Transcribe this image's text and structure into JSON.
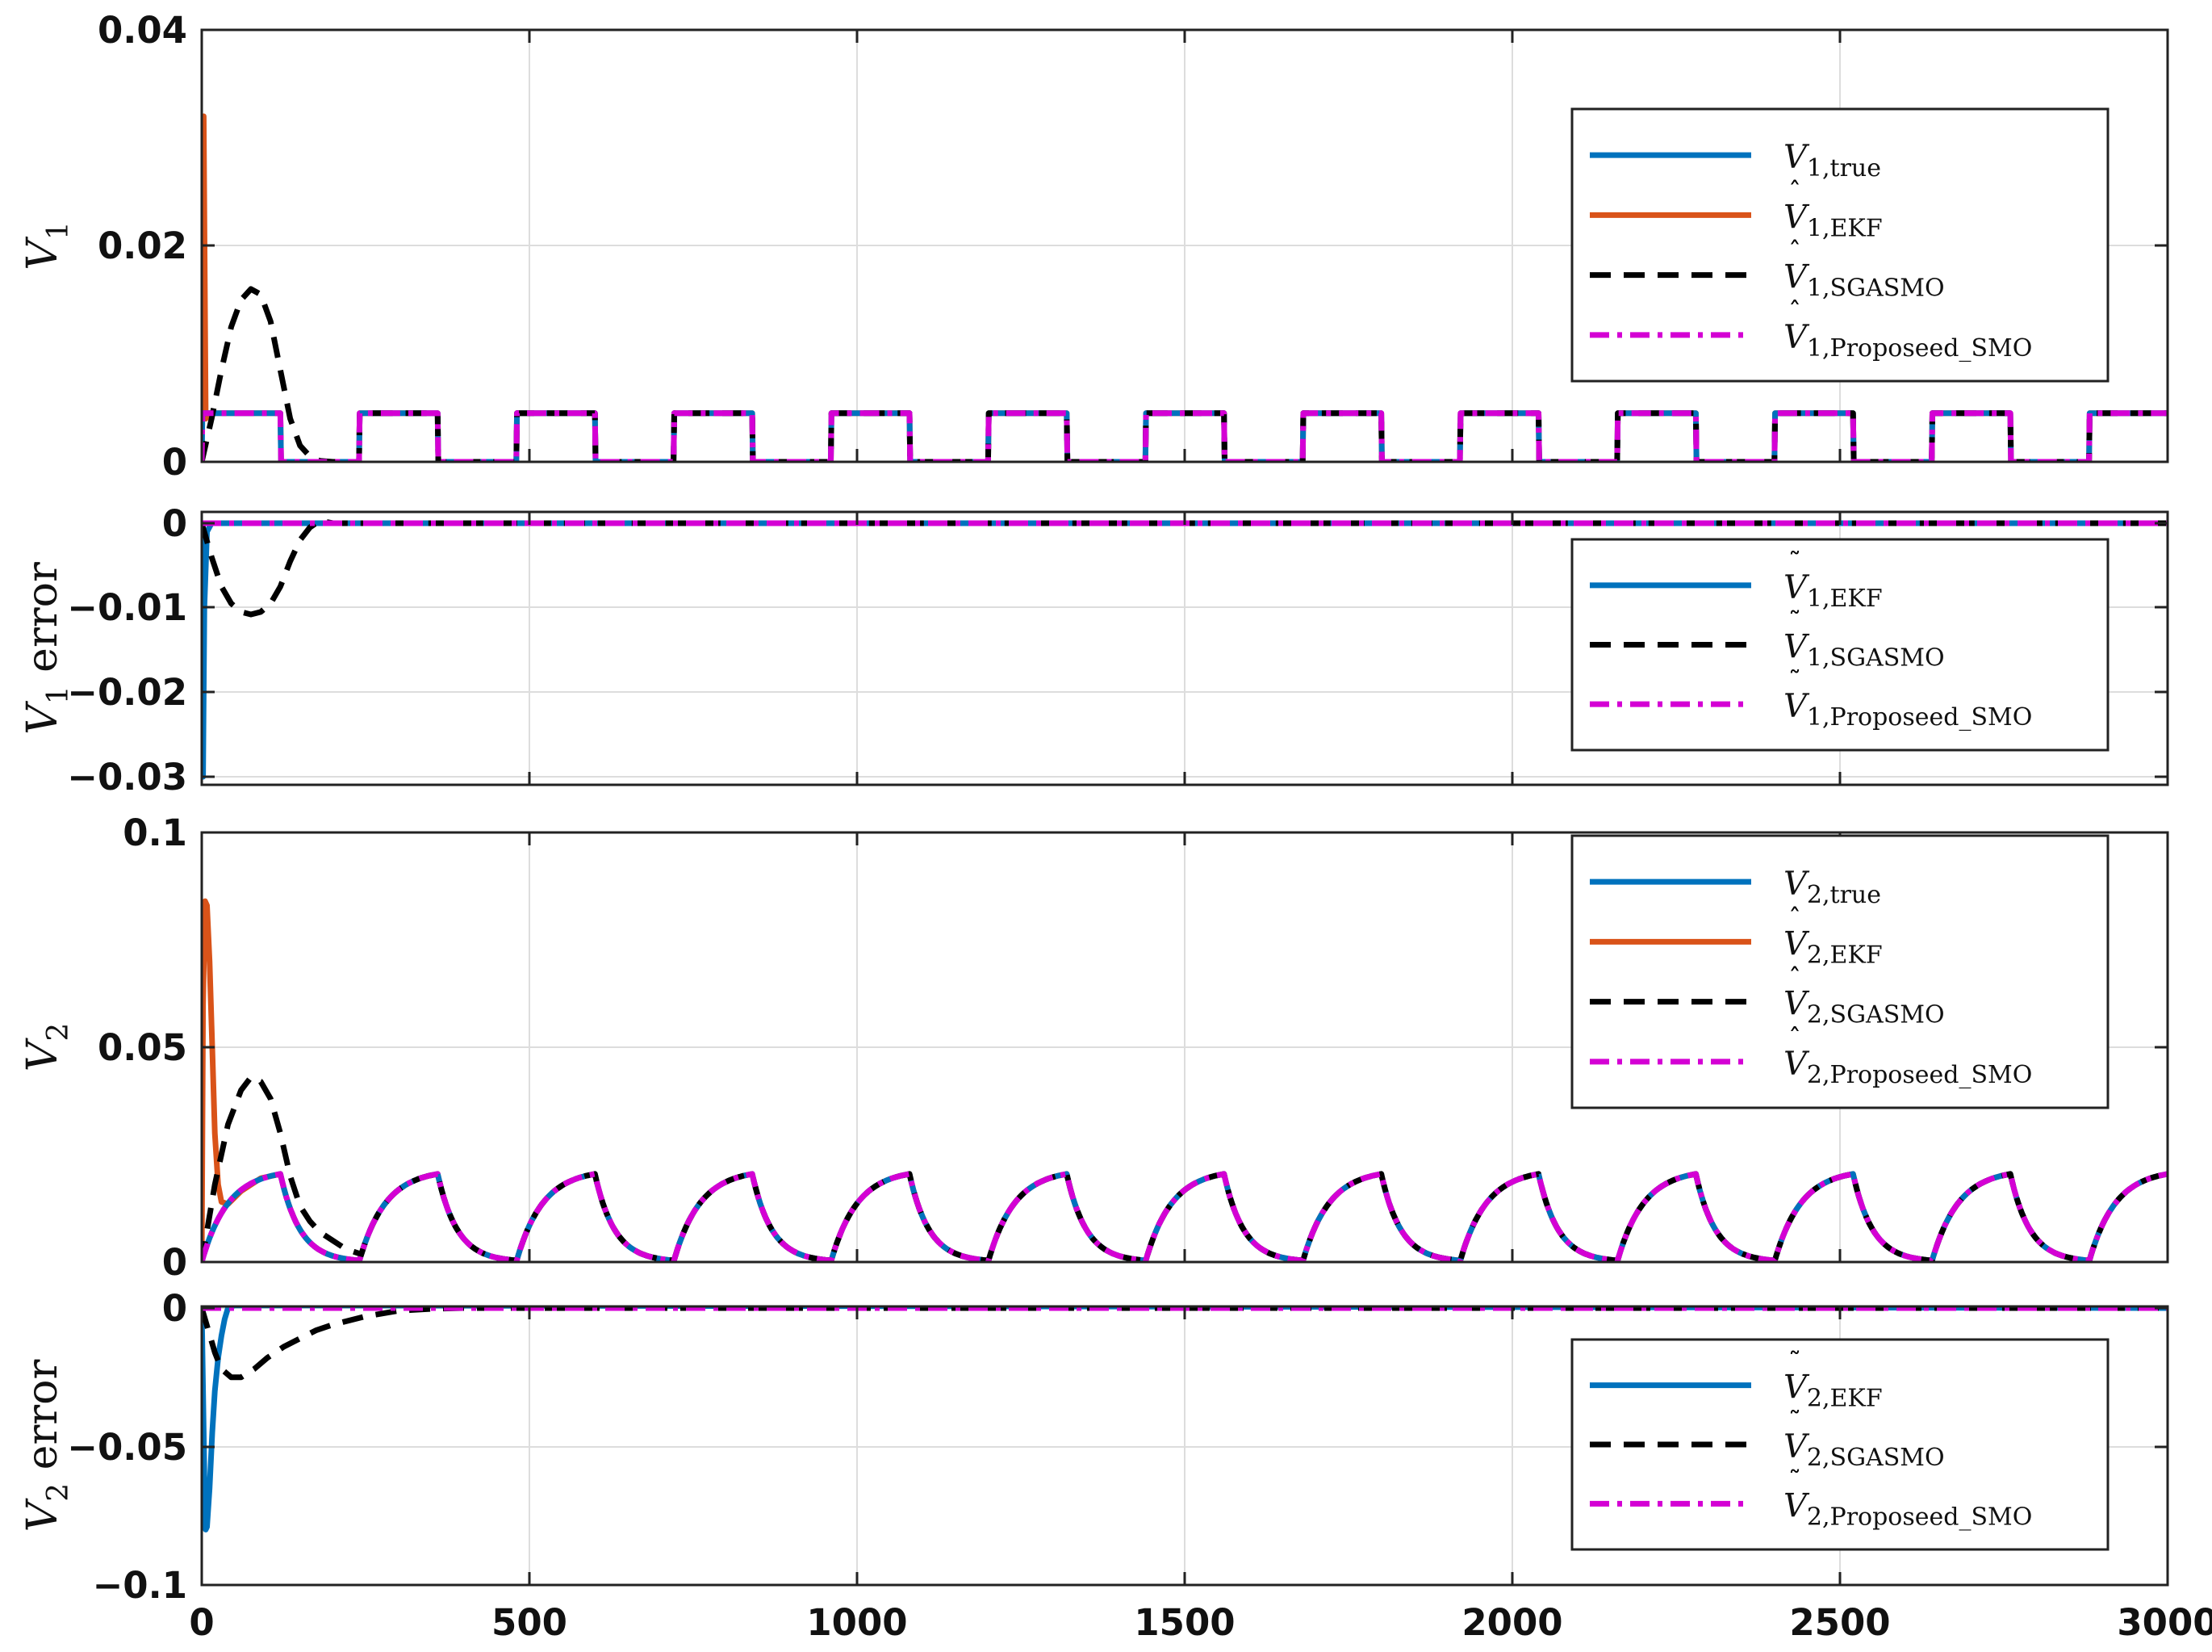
{
  "chart_data": [
    {
      "type": "line",
      "ylabel": "V1",
      "ylim": [
        0,
        0.04
      ],
      "yticks": [
        "0",
        "0.02",
        "0.04"
      ],
      "xlim": [
        0,
        3000
      ],
      "grid": true,
      "legend_position": "top-right",
      "square_wave": {
        "period": 240,
        "high": 0.0045,
        "low": 0.0,
        "first_high_end": 120
      },
      "series": [
        {
          "name": "V̂1,EKF",
          "color": "#D95319",
          "x": [
            0,
            3,
            6,
            10,
            120,
            121,
            240,
            241,
            360,
            361,
            480,
            481,
            600,
            601,
            720,
            721,
            840,
            841,
            960,
            961,
            1080,
            1081,
            1200,
            1201,
            1320,
            1321,
            1440,
            1441,
            1560,
            1561,
            1680,
            1681,
            1800,
            1801,
            1920,
            1921,
            2040,
            2041,
            2160,
            2161,
            2280,
            2281,
            2400,
            2401,
            2520,
            2521,
            2640,
            2641,
            2760,
            2761,
            2880,
            2881,
            3000
          ],
          "y": [
            0,
            0.032,
            0.004,
            0.0045,
            0.0045,
            0,
            0,
            0.0045,
            0.0045,
            0,
            0,
            0.0045,
            0.0045,
            0,
            0,
            0.0045,
            0.0045,
            0,
            0,
            0.0045,
            0.0045,
            0,
            0,
            0.0045,
            0.0045,
            0,
            0,
            0.0045,
            0.0045,
            0,
            0,
            0.0045,
            0.0045,
            0,
            0,
            0.0045,
            0.0045,
            0,
            0,
            0.0045,
            0.0045,
            0,
            0,
            0.0045,
            0.0045,
            0,
            0,
            0.0045,
            0.0045,
            0,
            0,
            0.0045,
            0.0045
          ]
        },
        {
          "name": "V1,true",
          "color": "#0072BD",
          "x": [
            0,
            1,
            120,
            121,
            240,
            241,
            360,
            361,
            480,
            481,
            600,
            601,
            720,
            721,
            840,
            841,
            960,
            961,
            1080,
            1081,
            1200,
            1201,
            1320,
            1321,
            1440,
            1441,
            1560,
            1561,
            1680,
            1681,
            1800,
            1801,
            1920,
            1921,
            2040,
            2041,
            2160,
            2161,
            2280,
            2281,
            2400,
            2401,
            2520,
            2521,
            2640,
            2641,
            2760,
            2761,
            2880,
            2881,
            3000
          ],
          "y": [
            0,
            0.0045,
            0.0045,
            0,
            0,
            0.0045,
            0.0045,
            0,
            0,
            0.0045,
            0.0045,
            0,
            0,
            0.0045,
            0.0045,
            0,
            0,
            0.0045,
            0.0045,
            0,
            0,
            0.0045,
            0.0045,
            0,
            0,
            0.0045,
            0.0045,
            0,
            0,
            0.0045,
            0.0045,
            0,
            0,
            0.0045,
            0.0045,
            0,
            0,
            0.0045,
            0.0045,
            0,
            0,
            0.0045,
            0.0045,
            0,
            0,
            0.0045,
            0.0045,
            0,
            0,
            0.0045,
            0.0045
          ]
        },
        {
          "name": "V̂1,SGASMO",
          "color": "#000000",
          "dash": "dashed",
          "x": [
            0,
            15,
            30,
            45,
            60,
            75,
            90,
            105,
            120,
            135,
            150,
            165,
            180,
            200,
            225,
            240,
            241,
            360,
            361,
            480,
            481,
            600,
            601,
            720,
            721,
            840,
            841,
            960,
            961,
            1080,
            1081,
            1200,
            1201,
            1320,
            1321,
            1440,
            1441,
            1560,
            1561,
            1680,
            1681,
            1800,
            1801,
            1920,
            1921,
            2040,
            2041,
            2160,
            2161,
            2280,
            2281,
            2400,
            2401,
            2520,
            2521,
            2640,
            2641,
            2760,
            2761,
            2880,
            2881,
            3000
          ],
          "y": [
            0,
            0.004,
            0.0085,
            0.0125,
            0.015,
            0.016,
            0.0155,
            0.013,
            0.0085,
            0.004,
            0.0015,
            0.0005,
            0.0001,
            0,
            0,
            0,
            0.0045,
            0.0045,
            0,
            0,
            0.0045,
            0.0045,
            0,
            0,
            0.0045,
            0.0045,
            0,
            0,
            0.0045,
            0.0045,
            0,
            0,
            0.0045,
            0.0045,
            0,
            0,
            0.0045,
            0.0045,
            0,
            0,
            0.0045,
            0.0045,
            0,
            0,
            0.0045,
            0.0045,
            0,
            0,
            0.0045,
            0.0045,
            0,
            0,
            0.0045,
            0.0045,
            0,
            0,
            0.0045,
            0.0045,
            0,
            0,
            0.0045,
            0.0045
          ]
        },
        {
          "name": "V̂1,Proposeed_SMO",
          "color": "#D400D4",
          "dash": "dashdot",
          "x": [
            0,
            1,
            120,
            121,
            240,
            241,
            360,
            361,
            480,
            481,
            600,
            601,
            720,
            721,
            840,
            841,
            960,
            961,
            1080,
            1081,
            1200,
            1201,
            1320,
            1321,
            1440,
            1441,
            1560,
            1561,
            1680,
            1681,
            1800,
            1801,
            1920,
            1921,
            2040,
            2041,
            2160,
            2161,
            2280,
            2281,
            2400,
            2401,
            2520,
            2521,
            2640,
            2641,
            2760,
            2761,
            2880,
            2881,
            3000
          ],
          "y": [
            0,
            0.0045,
            0.0045,
            0,
            0,
            0.0045,
            0.0045,
            0,
            0,
            0.0045,
            0.0045,
            0,
            0,
            0.0045,
            0.0045,
            0,
            0,
            0.0045,
            0.0045,
            0,
            0,
            0.0045,
            0.0045,
            0,
            0,
            0.0045,
            0.0045,
            0,
            0,
            0.0045,
            0.0045,
            0,
            0,
            0.0045,
            0.0045,
            0,
            0,
            0.0045,
            0.0045,
            0,
            0,
            0.0045,
            0.0045,
            0,
            0,
            0.0045,
            0.0045,
            0,
            0,
            0.0045,
            0.0045
          ]
        }
      ],
      "legend": [
        {
          "base": "V",
          "hat": "",
          "sub": "1,true",
          "color": "#0072BD",
          "dash": "solid"
        },
        {
          "base": "V",
          "hat": "^",
          "sub": "1,EKF",
          "color": "#D95319",
          "dash": "solid"
        },
        {
          "base": "V",
          "hat": "^",
          "sub": "1,SGASMO",
          "color": "#000000",
          "dash": "dashed"
        },
        {
          "base": "V",
          "hat": "^",
          "sub": "1,Proposeed_SMO",
          "color": "#D400D4",
          "dash": "dashdot"
        }
      ]
    },
    {
      "type": "line",
      "ylabel": "V1 error",
      "ylim": [
        -0.03,
        0.0005
      ],
      "yticks": [
        "0",
        "−0.01",
        "−0.02",
        "−0.03"
      ],
      "xlim": [
        0,
        3000
      ],
      "grid": true,
      "legend_position": "middle-right",
      "series": [
        {
          "name": "Ṽ1,EKF",
          "color": "#0072BD",
          "x": [
            0,
            2,
            4,
            8,
            15,
            3000
          ],
          "y": [
            0,
            -0.03,
            -0.01,
            -0.001,
            0,
            0
          ]
        },
        {
          "name": "Ṽ1,SGASMO",
          "color": "#000000",
          "dash": "dashed",
          "x": [
            0,
            15,
            30,
            45,
            60,
            75,
            90,
            105,
            120,
            135,
            150,
            165,
            180,
            200,
            225,
            3000
          ],
          "y": [
            0,
            -0.004,
            -0.0075,
            -0.0095,
            -0.0105,
            -0.0108,
            -0.0105,
            -0.0095,
            -0.0075,
            -0.0045,
            -0.002,
            -0.0005,
            0.0003,
            0,
            0,
            0
          ]
        },
        {
          "name": "Ṽ1,Proposeed_SMO",
          "color": "#D400D4",
          "dash": "dashdot",
          "x": [
            0,
            3000
          ],
          "y": [
            0,
            0
          ]
        }
      ],
      "legend": [
        {
          "base": "V",
          "hat": "~",
          "sub": "1,EKF",
          "color": "#0072BD",
          "dash": "solid"
        },
        {
          "base": "V",
          "hat": "~",
          "sub": "1,SGASMO",
          "color": "#000000",
          "dash": "dashed"
        },
        {
          "base": "V",
          "hat": "~",
          "sub": "1,Proposeed_SMO",
          "color": "#D400D4",
          "dash": "dashdot"
        }
      ]
    },
    {
      "type": "line",
      "ylabel": "V2",
      "ylim": [
        0,
        0.1
      ],
      "yticks": [
        "0",
        "0.05",
        "0.1"
      ],
      "xlim": [
        0,
        3000
      ],
      "grid": true,
      "legend_position": "top-right",
      "rc_wave": {
        "period": 240,
        "peak": 0.0205,
        "charge_tau": 40,
        "discharge_tau": 30
      },
      "series": [
        {
          "name": "V̂2,EKF",
          "color": "#D95319",
          "x": [
            0,
            2,
            5,
            8,
            12,
            16,
            20,
            25,
            30,
            40,
            60,
            90,
            120
          ],
          "y": [
            0,
            0.06,
            0.084,
            0.083,
            0.07,
            0.05,
            0.03,
            0.018,
            0.014,
            0.0135,
            0.0165,
            0.0195,
            0.0205
          ]
        },
        {
          "name": "V̂2,SGASMO",
          "color": "#000000",
          "dash": "dashed",
          "x": [
            0,
            20,
            40,
            60,
            75,
            90,
            105,
            120,
            135,
            150,
            165,
            180,
            200,
            220,
            240
          ],
          "y": [
            0,
            0.018,
            0.032,
            0.04,
            0.043,
            0.042,
            0.038,
            0.03,
            0.02,
            0.013,
            0.0095,
            0.007,
            0.005,
            0.003,
            0.002
          ]
        }
      ],
      "legend": [
        {
          "base": "V",
          "hat": "",
          "sub": "2,true",
          "color": "#0072BD",
          "dash": "solid"
        },
        {
          "base": "V",
          "hat": "^",
          "sub": "2,EKF",
          "color": "#D95319",
          "dash": "solid"
        },
        {
          "base": "V",
          "hat": "^",
          "sub": "2,SGASMO",
          "color": "#000000",
          "dash": "dashed"
        },
        {
          "base": "V",
          "hat": "^",
          "sub": "2,Proposeed_SMO",
          "color": "#D400D4",
          "dash": "dashdot"
        }
      ]
    },
    {
      "type": "line",
      "ylabel": "V2 error",
      "ylim": [
        -0.1,
        0.002
      ],
      "yticks": [
        "0",
        "−0.05",
        "−0.1"
      ],
      "xlim": [
        0,
        3000
      ],
      "grid": true,
      "legend_position": "middle-right",
      "series": [
        {
          "name": "Ṽ2,EKF",
          "color": "#0072BD",
          "x": [
            0,
            2,
            4,
            6,
            8,
            12,
            16,
            20,
            25,
            30,
            35,
            40,
            50,
            3000
          ],
          "y": [
            0,
            -0.03,
            -0.06,
            -0.08,
            -0.079,
            -0.065,
            -0.045,
            -0.03,
            -0.018,
            -0.01,
            -0.004,
            0,
            0.001,
            0
          ]
        },
        {
          "name": "Ṽ2,SGASMO",
          "color": "#000000",
          "dash": "dashed",
          "x": [
            0,
            10,
            20,
            30,
            45,
            60,
            80,
            100,
            125,
            150,
            175,
            200,
            250,
            300,
            350,
            400,
            3000
          ],
          "y": [
            0,
            -0.008,
            -0.016,
            -0.022,
            -0.025,
            -0.025,
            -0.022,
            -0.018,
            -0.014,
            -0.011,
            -0.008,
            -0.006,
            -0.003,
            -0.001,
            -0.0003,
            0,
            0
          ]
        },
        {
          "name": "Ṽ2,Proposeed_SMO",
          "color": "#D400D4",
          "dash": "dashdot",
          "x": [
            0,
            3000
          ],
          "y": [
            0,
            0
          ]
        }
      ],
      "legend": [
        {
          "base": "V",
          "hat": "~",
          "sub": "2,EKF",
          "color": "#0072BD",
          "dash": "solid"
        },
        {
          "base": "V",
          "hat": "~",
          "sub": "2,SGASMO",
          "color": "#000000",
          "dash": "dashed"
        },
        {
          "base": "V",
          "hat": "~",
          "sub": "2,Proposeed_SMO",
          "color": "#D400D4",
          "dash": "dashdot"
        }
      ]
    }
  ],
  "x_ticks": [
    "0",
    "500",
    "1000",
    "1500",
    "2000",
    "2500",
    "3000"
  ],
  "colors": {
    "true": "#0072BD",
    "ekf": "#D95319",
    "sgasmo": "#000000",
    "proposed": "#D400D4",
    "grid": "#DDDDDD"
  }
}
